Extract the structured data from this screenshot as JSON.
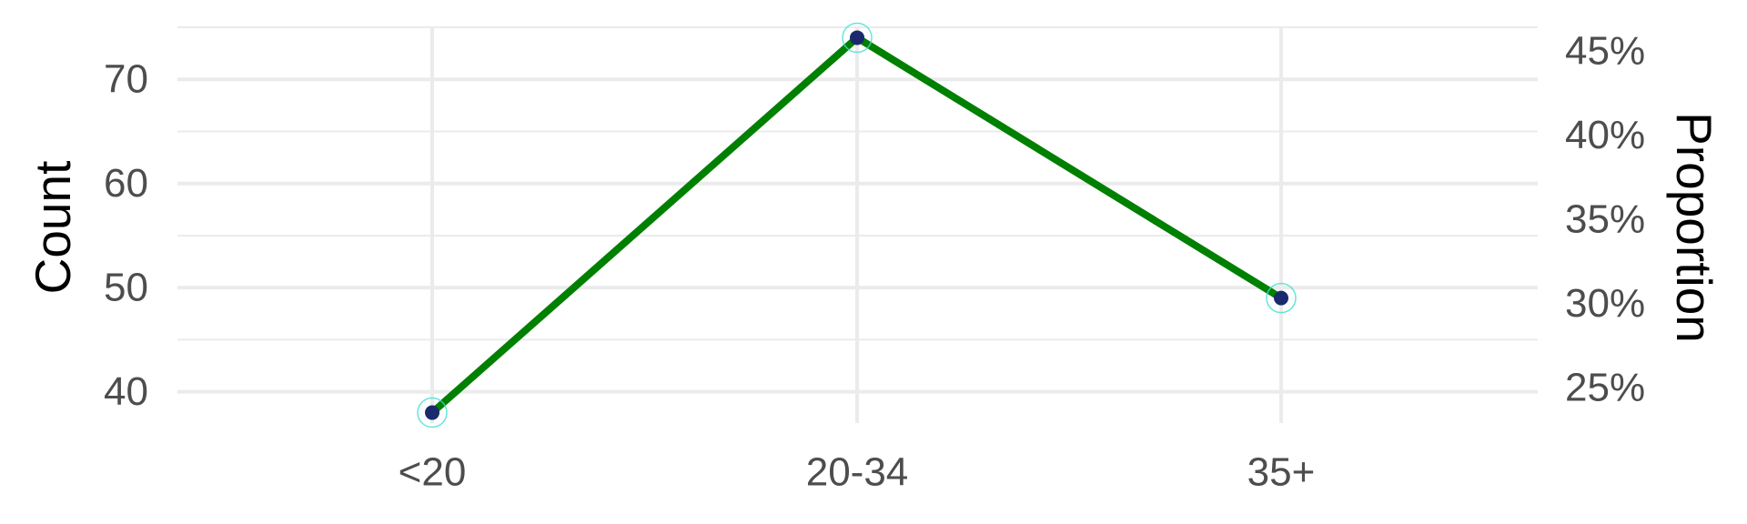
{
  "chart_data": {
    "type": "line",
    "categories": [
      "<20",
      "20-34",
      "35+"
    ],
    "values": [
      38,
      74,
      49
    ],
    "ylabel": "Count",
    "ylabel_secondary": "Proportion",
    "y_ticks": [
      40,
      50,
      60,
      70
    ],
    "ylim": [
      37,
      75
    ],
    "y2_ticks": [
      "25%",
      "30%",
      "35%",
      "40%",
      "45%"
    ],
    "y2_tick_values": [
      0.25,
      0.3,
      0.35,
      0.4,
      0.45
    ],
    "y2lim": [
      0.2288,
      0.4641
    ],
    "grid": true,
    "legend": "none",
    "colors": {
      "line": "#008000",
      "point": "#1a2a6c",
      "point_halo": "#40e0d0",
      "grid": "#ebebeb",
      "tick_text": "#4d4d4d",
      "axis_title": "#000000"
    }
  }
}
